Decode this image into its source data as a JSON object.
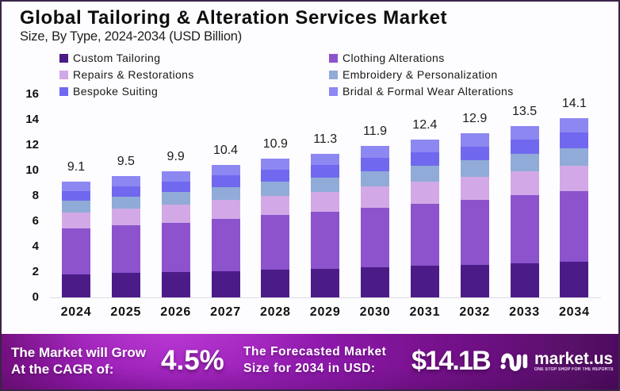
{
  "header": {
    "title": "Global Tailoring & Alteration Services Market",
    "subtitle": "Size, By Type, 2024-2034 (USD Billion)"
  },
  "chart_data": {
    "type": "bar",
    "stacked": true,
    "title": "Global Tailoring & Alteration Services Market",
    "subtitle": "Size, By Type, 2024-2034 (USD Billion)",
    "unit": "USD Billion",
    "categories": [
      "2024",
      "2025",
      "2026",
      "2027",
      "2028",
      "2029",
      "2030",
      "2031",
      "2032",
      "2033",
      "2034"
    ],
    "totals": [
      9.1,
      9.5,
      9.9,
      10.4,
      10.9,
      11.3,
      11.9,
      12.4,
      12.9,
      13.5,
      14.1
    ],
    "series": [
      {
        "name": "Custom Tailoring",
        "color": "#4b1c87",
        "values": [
          1.8,
          1.88,
          1.96,
          2.06,
          2.16,
          2.24,
          2.36,
          2.46,
          2.55,
          2.67,
          2.79
        ]
      },
      {
        "name": "Clothing Alterations",
        "color": "#8c53cd",
        "values": [
          3.59,
          3.75,
          3.91,
          4.11,
          4.31,
          4.46,
          4.7,
          4.9,
          5.1,
          5.33,
          5.57
        ]
      },
      {
        "name": "Repairs & Restorations",
        "color": "#d2a9e6",
        "values": [
          1.27,
          1.33,
          1.39,
          1.46,
          1.53,
          1.58,
          1.67,
          1.74,
          1.81,
          1.89,
          1.97
        ]
      },
      {
        "name": "Embroidery & Personalization",
        "color": "#90abd8",
        "values": [
          0.92,
          0.96,
          1.0,
          1.05,
          1.1,
          1.14,
          1.2,
          1.25,
          1.3,
          1.36,
          1.42
        ]
      },
      {
        "name": "Bespoke Suiting",
        "color": "#7068ef",
        "values": [
          0.78,
          0.82,
          0.85,
          0.89,
          0.94,
          0.97,
          1.02,
          1.07,
          1.11,
          1.16,
          1.21
        ]
      },
      {
        "name": "Bridal & Formal Wear Alterations",
        "color": "#8d87f2",
        "values": [
          0.73,
          0.76,
          0.79,
          0.83,
          0.87,
          0.9,
          0.95,
          0.99,
          1.03,
          1.08,
          1.13
        ]
      }
    ],
    "xlabel": "",
    "ylabel": "",
    "ylim": [
      0,
      16
    ],
    "ytick_step": 2,
    "grid": false,
    "legend_position": "top"
  },
  "footer": {
    "cagr_label_lines": [
      "The Market will Grow",
      "At the CAGR of:"
    ],
    "cagr_value": "4.5%",
    "forecast_label_lines": [
      "The Forecasted Market",
      "Size for 2034 in USD:"
    ],
    "forecast_value": "$14.1B",
    "brand_name": "market.us",
    "brand_tagline": "ONE STOP SHOP FOR THE REPORTS"
  },
  "colors": {
    "background": "#fdfcfe",
    "border": "#392547",
    "banner_left": "#9a1db6",
    "banner_right": "#500a63",
    "text_dark": "#101010",
    "text_white": "#ffffff"
  }
}
